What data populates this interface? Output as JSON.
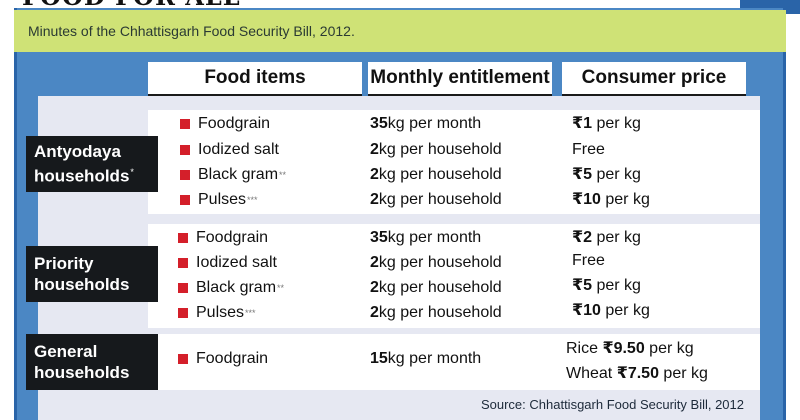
{
  "heading": {
    "title": "FOOD FOR ALL"
  },
  "subtitle": "Minutes of the Chhattisgarh Food Security Bill, 2012.",
  "columns": {
    "food_items": "Food items",
    "monthly_entitlement": "Monthly entitlement",
    "consumer_price": "Consumer price"
  },
  "groups": {
    "antyodaya": {
      "label_line1": "Antyodaya",
      "label_line2": "households",
      "label_mark": "*",
      "rows": [
        {
          "item": "Foodgrain",
          "mark": "",
          "qty": "35",
          "qty_unit": "kg per month",
          "price_prefix": "",
          "price_value": "₹1",
          "price_unit": " per kg"
        },
        {
          "item": "Iodized salt",
          "mark": "",
          "qty": "2",
          "qty_unit": "kg per household",
          "price_prefix": "",
          "price_value": "",
          "price_unit": "Free"
        },
        {
          "item": "Black gram",
          "mark": "**",
          "qty": "2",
          "qty_unit": "kg per household",
          "price_prefix": "",
          "price_value": "₹5",
          "price_unit": " per kg"
        },
        {
          "item": "Pulses",
          "mark": "***",
          "qty": "2",
          "qty_unit": "kg per household",
          "price_prefix": "",
          "price_value": "₹10",
          "price_unit": " per kg"
        }
      ]
    },
    "priority": {
      "label_line1": "Priority",
      "label_line2": "households",
      "rows": [
        {
          "item": "Foodgrain",
          "mark": "",
          "qty": "35",
          "qty_unit": "kg per month",
          "price_prefix": "",
          "price_value": "₹2",
          "price_unit": " per kg"
        },
        {
          "item": "Iodized salt",
          "mark": "",
          "qty": "2",
          "qty_unit": "kg per household",
          "price_prefix": "",
          "price_value": "",
          "price_unit": "Free"
        },
        {
          "item": "Black gram",
          "mark": "**",
          "qty": "2",
          "qty_unit": "kg per household",
          "price_prefix": "",
          "price_value": "₹5",
          "price_unit": " per kg"
        },
        {
          "item": "Pulses",
          "mark": "***",
          "qty": "2",
          "qty_unit": "kg per household",
          "price_prefix": "",
          "price_value": "₹10",
          "price_unit": " per kg"
        }
      ]
    },
    "general": {
      "label_line1": "General",
      "label_line2": "households",
      "rows": [
        {
          "item": "Foodgrain",
          "mark": "",
          "qty": "15",
          "qty_unit": "kg per month",
          "price_line1_prefix": "Rice ",
          "price_line1_value": "₹9.50",
          "price_line1_unit": " per kg",
          "price_line2_prefix": "Wheat ",
          "price_line2_value": "₹7.50",
          "price_line2_unit": " per kg"
        }
      ]
    }
  },
  "source": "Source: Chhattisgarh Food Security Bill, 2012",
  "colors": {
    "frame_blue": "#4b87c4",
    "subtitle_green": "#cfe276",
    "panel_grey": "#e6e8f2",
    "label_black": "#16191c",
    "bullet_red": "#d41f2a"
  },
  "icons": {
    "bullet": "red-square-bullet-icon"
  }
}
